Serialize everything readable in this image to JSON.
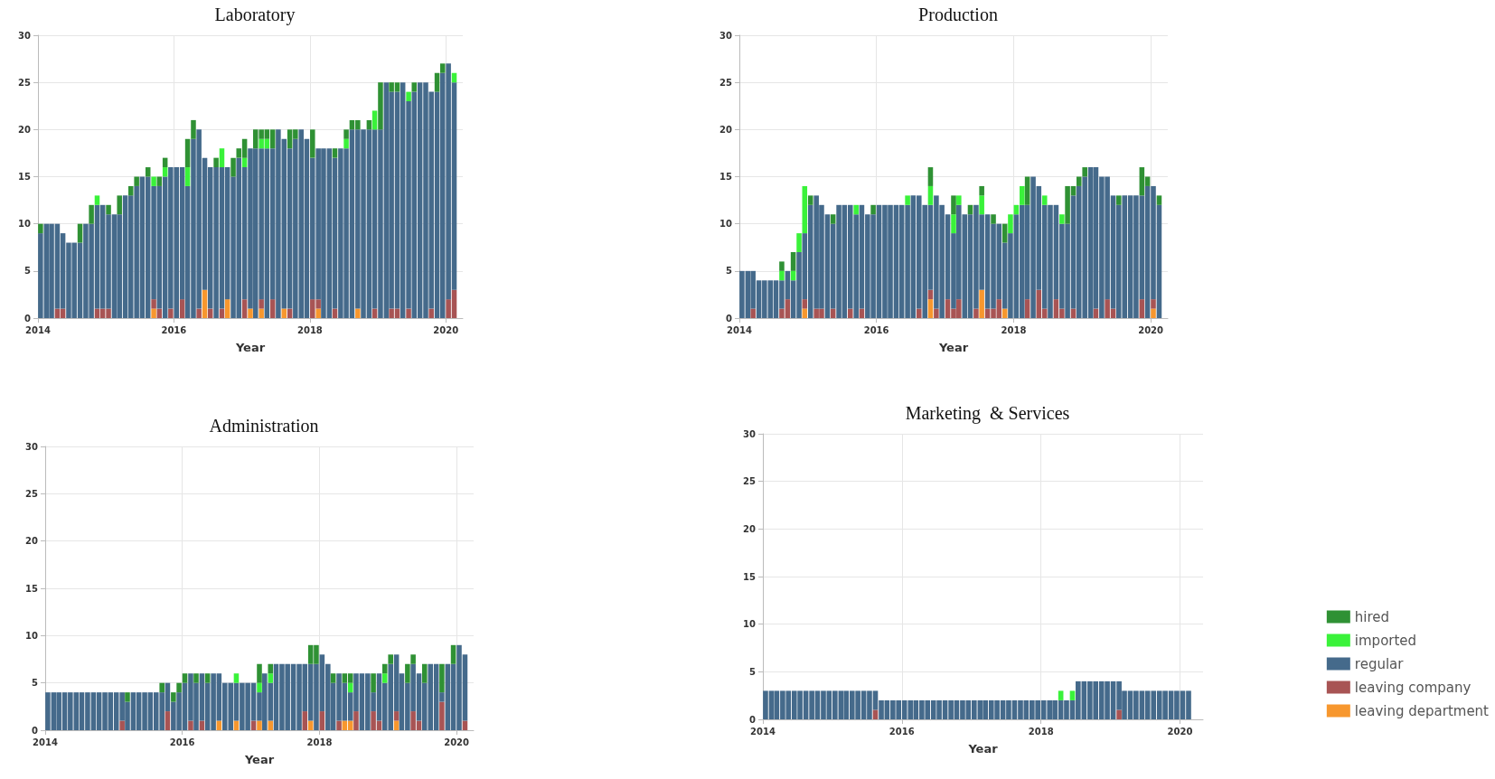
{
  "chart_data": [
    {
      "type": "bar",
      "title": "Laboratory",
      "xlabel": "Year",
      "stacked": true,
      "grid": true,
      "legend": false,
      "xlim": [
        "2014",
        "2020-04"
      ],
      "xticks": [
        "2014",
        "2016",
        "2018",
        "2020"
      ],
      "ylim": [
        0,
        30
      ],
      "yticks": [
        0,
        5,
        10,
        15,
        20,
        25,
        30
      ],
      "x": [
        "2014-01-15",
        "2014-02-15",
        "2014-03-15",
        "2014-04-15",
        "2014-05-15",
        "2014-06-15",
        "2014-07-15",
        "2014-08-15",
        "2014-09-15",
        "2014-10-15",
        "2014-11-15",
        "2014-12-15",
        "2015-01-15",
        "2015-02-15",
        "2015-03-15",
        "2015-04-15",
        "2015-05-15",
        "2015-06-15",
        "2015-07-15",
        "2015-08-15",
        "2015-09-15",
        "2015-10-15",
        "2015-11-15",
        "2015-12-15",
        "2016-01-15",
        "2016-02-15",
        "2016-03-15",
        "2016-04-15",
        "2016-05-15",
        "2016-06-15",
        "2016-07-15",
        "2016-08-15",
        "2016-09-15",
        "2016-10-15",
        "2016-11-15",
        "2016-12-15",
        "2017-01-15",
        "2017-02-15",
        "2017-03-15",
        "2017-04-15",
        "2017-05-15",
        "2017-06-15",
        "2017-07-15",
        "2017-08-15",
        "2017-09-15",
        "2017-10-15",
        "2017-11-15",
        "2017-12-15",
        "2018-01-15",
        "2018-02-15",
        "2018-03-15",
        "2018-04-15",
        "2018-05-15",
        "2018-06-15",
        "2018-07-15",
        "2018-08-15",
        "2018-09-15",
        "2018-10-15",
        "2018-11-15",
        "2018-12-15",
        "2019-01-15",
        "2019-02-15",
        "2019-03-15",
        "2019-04-15",
        "2019-05-15",
        "2019-06-15",
        "2019-07-15",
        "2019-08-15",
        "2019-09-15",
        "2019-10-15",
        "2019-11-15",
        "2019-12-15",
        "2020-01-15",
        "2020-02-15"
      ],
      "series": [
        {
          "color": "#f7972e",
          "values": [
            0,
            0,
            0,
            0,
            0,
            0,
            0,
            0,
            0,
            0,
            0,
            0,
            0,
            0,
            0,
            0,
            0,
            0,
            0,
            0,
            1,
            0,
            0,
            0,
            0,
            0,
            0,
            0,
            0,
            3,
            0,
            0,
            0,
            2,
            0,
            0,
            0,
            1,
            0,
            1,
            0,
            0,
            0,
            1,
            0,
            0,
            0,
            0,
            0,
            1,
            0,
            0,
            0,
            0,
            0,
            0,
            1,
            0,
            0,
            0,
            0,
            0,
            0,
            0,
            0,
            0,
            0,
            0,
            0,
            0,
            0,
            0,
            0,
            0
          ]
        },
        {
          "color": "#a85454",
          "values": [
            0,
            0,
            0,
            1,
            1,
            0,
            0,
            0,
            0,
            0,
            1,
            1,
            1,
            0,
            0,
            0,
            0,
            0,
            0,
            0,
            1,
            1,
            0,
            1,
            0,
            2,
            0,
            0,
            1,
            0,
            1,
            0,
            1,
            0,
            0,
            0,
            2,
            0,
            0,
            1,
            0,
            2,
            0,
            0,
            1,
            0,
            0,
            0,
            2,
            1,
            0,
            0,
            1,
            0,
            0,
            0,
            0,
            0,
            0,
            1,
            0,
            0,
            1,
            1,
            0,
            1,
            0,
            0,
            0,
            1,
            0,
            0,
            2,
            3
          ]
        },
        {
          "color": "#456a8b",
          "values": [
            9,
            10,
            10,
            9,
            8,
            8,
            8,
            8,
            10,
            10,
            11,
            11,
            10,
            11,
            11,
            13,
            13,
            14,
            15,
            15,
            12,
            13,
            15,
            15,
            16,
            14,
            14,
            19,
            19,
            14,
            15,
            16,
            15,
            14,
            15,
            17,
            14,
            17,
            18,
            16,
            18,
            16,
            20,
            18,
            17,
            19,
            20,
            19,
            15,
            16,
            18,
            18,
            16,
            18,
            18,
            20,
            19,
            20,
            20,
            19,
            20,
            25,
            23,
            23,
            25,
            22,
            24,
            25,
            25,
            23,
            24,
            26,
            25,
            22
          ]
        },
        {
          "color": "#3af23a",
          "values": [
            0,
            0,
            0,
            0,
            0,
            0,
            0,
            0,
            0,
            0,
            1,
            0,
            0,
            0,
            0,
            0,
            0,
            0,
            0,
            0,
            1,
            0,
            1,
            0,
            0,
            0,
            2,
            0,
            0,
            0,
            0,
            0,
            2,
            0,
            0,
            0,
            1,
            0,
            0,
            1,
            1,
            0,
            0,
            0,
            0,
            0,
            0,
            0,
            0,
            0,
            0,
            0,
            0,
            0,
            1,
            0,
            0,
            0,
            0,
            2,
            0,
            0,
            0,
            0,
            0,
            1,
            0,
            0,
            0,
            0,
            0,
            0,
            0,
            1
          ]
        },
        {
          "color": "#2f9134",
          "values": [
            1,
            0,
            0,
            0,
            0,
            0,
            0,
            2,
            0,
            2,
            0,
            0,
            1,
            0,
            2,
            0,
            1,
            1,
            0,
            1,
            0,
            1,
            1,
            0,
            0,
            0,
            3,
            2,
            0,
            0,
            0,
            1,
            0,
            0,
            2,
            1,
            2,
            0,
            2,
            1,
            1,
            2,
            0,
            0,
            2,
            1,
            0,
            0,
            3,
            0,
            0,
            0,
            1,
            0,
            1,
            1,
            1,
            0,
            1,
            0,
            5,
            0,
            1,
            1,
            0,
            0,
            1,
            0,
            0,
            0,
            2,
            1,
            0,
            0
          ]
        }
      ]
    },
    {
      "type": "bar",
      "title": "Production",
      "xlabel": "Year",
      "stacked": true,
      "grid": true,
      "legend": false,
      "xlim": [
        "2014",
        "2020-04"
      ],
      "xticks": [
        "2014",
        "2016",
        "2018",
        "2020"
      ],
      "ylim": [
        0,
        30
      ],
      "yticks": [
        0,
        5,
        10,
        15,
        20,
        25,
        30
      ],
      "x": [
        "2014-01-15",
        "2014-02-15",
        "2014-03-15",
        "2014-04-15",
        "2014-05-15",
        "2014-06-15",
        "2014-07-15",
        "2014-08-15",
        "2014-09-15",
        "2014-10-15",
        "2014-11-15",
        "2014-12-15",
        "2015-01-15",
        "2015-02-15",
        "2015-03-15",
        "2015-04-15",
        "2015-05-15",
        "2015-06-15",
        "2015-07-15",
        "2015-08-15",
        "2015-09-15",
        "2015-10-15",
        "2015-11-15",
        "2015-12-15",
        "2016-01-15",
        "2016-02-15",
        "2016-03-15",
        "2016-04-15",
        "2016-05-15",
        "2016-06-15",
        "2016-07-15",
        "2016-08-15",
        "2016-09-15",
        "2016-10-15",
        "2016-11-15",
        "2016-12-15",
        "2017-01-15",
        "2017-02-15",
        "2017-03-15",
        "2017-04-15",
        "2017-05-15",
        "2017-06-15",
        "2017-07-15",
        "2017-08-15",
        "2017-09-15",
        "2017-10-15",
        "2017-11-15",
        "2017-12-15",
        "2018-01-15",
        "2018-02-15",
        "2018-03-15",
        "2018-04-15",
        "2018-05-15",
        "2018-06-15",
        "2018-07-15",
        "2018-08-15",
        "2018-09-15",
        "2018-10-15",
        "2018-11-15",
        "2018-12-15",
        "2019-01-15",
        "2019-02-15",
        "2019-03-15",
        "2019-04-15",
        "2019-05-15",
        "2019-06-15",
        "2019-07-15",
        "2019-08-15",
        "2019-09-15",
        "2019-10-15",
        "2019-11-15",
        "2019-12-15",
        "2020-01-15",
        "2020-02-15"
      ],
      "series": [
        {
          "color": "#f7972e",
          "values": [
            0,
            0,
            0,
            0,
            0,
            0,
            0,
            0,
            0,
            0,
            0,
            1,
            0,
            0,
            0,
            0,
            0,
            0,
            0,
            0,
            0,
            0,
            0,
            0,
            0,
            0,
            0,
            0,
            0,
            0,
            0,
            0,
            0,
            2,
            0,
            0,
            0,
            0,
            0,
            0,
            0,
            0,
            3,
            0,
            0,
            0,
            1,
            0,
            0,
            0,
            0,
            0,
            0,
            0,
            0,
            0,
            0,
            0,
            0,
            0,
            0,
            0,
            0,
            0,
            0,
            0,
            0,
            0,
            0,
            0,
            0,
            0,
            1,
            0
          ]
        },
        {
          "color": "#a85454",
          "values": [
            0,
            0,
            1,
            0,
            0,
            0,
            0,
            1,
            2,
            0,
            0,
            1,
            0,
            1,
            1,
            0,
            1,
            0,
            0,
            1,
            0,
            1,
            0,
            0,
            0,
            0,
            0,
            0,
            0,
            0,
            0,
            1,
            0,
            1,
            1,
            0,
            2,
            1,
            2,
            0,
            0,
            1,
            0,
            1,
            1,
            2,
            0,
            0,
            0,
            0,
            2,
            0,
            3,
            1,
            0,
            2,
            1,
            0,
            1,
            0,
            0,
            0,
            1,
            0,
            2,
            1,
            0,
            0,
            0,
            0,
            2,
            0,
            1,
            0
          ]
        },
        {
          "color": "#456a8b",
          "values": [
            5,
            5,
            4,
            4,
            4,
            4,
            4,
            3,
            3,
            4,
            7,
            7,
            12,
            12,
            11,
            11,
            9,
            12,
            12,
            11,
            11,
            11,
            11,
            11,
            12,
            12,
            12,
            12,
            12,
            12,
            13,
            12,
            12,
            9,
            12,
            12,
            9,
            8,
            10,
            11,
            11,
            11,
            8,
            10,
            9,
            8,
            7,
            9,
            11,
            12,
            10,
            15,
            11,
            11,
            12,
            10,
            9,
            10,
            12,
            14,
            15,
            16,
            15,
            15,
            13,
            12,
            12,
            13,
            13,
            13,
            11,
            14,
            12,
            12
          ]
        },
        {
          "color": "#3af23a",
          "values": [
            0,
            0,
            0,
            0,
            0,
            0,
            0,
            1,
            0,
            1,
            2,
            5,
            0,
            0,
            0,
            0,
            0,
            0,
            0,
            0,
            1,
            0,
            0,
            0,
            0,
            0,
            0,
            0,
            0,
            1,
            0,
            0,
            0,
            2,
            0,
            0,
            0,
            2,
            1,
            0,
            0,
            0,
            2,
            0,
            0,
            0,
            0,
            2,
            1,
            2,
            0,
            0,
            0,
            1,
            0,
            0,
            1,
            0,
            0,
            0,
            0,
            0,
            0,
            0,
            0,
            0,
            0,
            0,
            0,
            0,
            0,
            0,
            0,
            0
          ]
        },
        {
          "color": "#2f9134",
          "values": [
            0,
            0,
            0,
            0,
            0,
            0,
            0,
            1,
            0,
            2,
            0,
            0,
            1,
            0,
            0,
            0,
            1,
            0,
            0,
            0,
            0,
            0,
            0,
            1,
            0,
            0,
            0,
            0,
            0,
            0,
            0,
            0,
            0,
            2,
            0,
            0,
            0,
            2,
            0,
            0,
            1,
            0,
            1,
            0,
            1,
            0,
            2,
            0,
            0,
            0,
            3,
            0,
            0,
            0,
            0,
            0,
            0,
            4,
            1,
            1,
            1,
            0,
            0,
            0,
            0,
            0,
            1,
            0,
            0,
            0,
            3,
            1,
            0,
            1
          ]
        }
      ]
    },
    {
      "type": "bar",
      "title": "Administration",
      "xlabel": "Year",
      "stacked": true,
      "grid": true,
      "legend": false,
      "xlim": [
        "2014",
        "2020-04"
      ],
      "xticks": [
        "2014",
        "2016",
        "2018",
        "2020"
      ],
      "ylim": [
        0,
        30
      ],
      "yticks": [
        0,
        5,
        10,
        15,
        20,
        25,
        30
      ],
      "x": [
        "2014-01-15",
        "2014-02-15",
        "2014-03-15",
        "2014-04-15",
        "2014-05-15",
        "2014-06-15",
        "2014-07-15",
        "2014-08-15",
        "2014-09-15",
        "2014-10-15",
        "2014-11-15",
        "2014-12-15",
        "2015-01-15",
        "2015-02-15",
        "2015-03-15",
        "2015-04-15",
        "2015-05-15",
        "2015-06-15",
        "2015-07-15",
        "2015-08-15",
        "2015-09-15",
        "2015-10-15",
        "2015-11-15",
        "2015-12-15",
        "2016-01-15",
        "2016-02-15",
        "2016-03-15",
        "2016-04-15",
        "2016-05-15",
        "2016-06-15",
        "2016-07-15",
        "2016-08-15",
        "2016-09-15",
        "2016-10-15",
        "2016-11-15",
        "2016-12-15",
        "2017-01-15",
        "2017-02-15",
        "2017-03-15",
        "2017-04-15",
        "2017-05-15",
        "2017-06-15",
        "2017-07-15",
        "2017-08-15",
        "2017-09-15",
        "2017-10-15",
        "2017-11-15",
        "2017-12-15",
        "2018-01-15",
        "2018-02-15",
        "2018-03-15",
        "2018-04-15",
        "2018-05-15",
        "2018-06-15",
        "2018-07-15",
        "2018-08-15",
        "2018-09-15",
        "2018-10-15",
        "2018-11-15",
        "2018-12-15",
        "2019-01-15",
        "2019-02-15",
        "2019-03-15",
        "2019-04-15",
        "2019-05-15",
        "2019-06-15",
        "2019-07-15",
        "2019-08-15",
        "2019-09-15",
        "2019-10-15",
        "2019-11-15",
        "2019-12-15",
        "2020-01-15",
        "2020-02-15"
      ],
      "series": [
        {
          "color": "#f7972e",
          "values": [
            0,
            0,
            0,
            0,
            0,
            0,
            0,
            0,
            0,
            0,
            0,
            0,
            0,
            0,
            0,
            0,
            0,
            0,
            0,
            0,
            0,
            0,
            0,
            0,
            0,
            0,
            0,
            0,
            0,
            0,
            1,
            0,
            0,
            1,
            0,
            0,
            0,
            1,
            0,
            1,
            0,
            0,
            0,
            0,
            0,
            0,
            1,
            0,
            0,
            0,
            0,
            0,
            1,
            1,
            0,
            0,
            0,
            0,
            0,
            0,
            0,
            1,
            0,
            0,
            0,
            0,
            0,
            0,
            0,
            0,
            0,
            0,
            0,
            0
          ]
        },
        {
          "color": "#a85454",
          "values": [
            0,
            0,
            0,
            0,
            0,
            0,
            0,
            0,
            0,
            0,
            0,
            0,
            0,
            1,
            0,
            0,
            0,
            0,
            0,
            0,
            0,
            2,
            0,
            0,
            0,
            1,
            0,
            1,
            0,
            0,
            0,
            0,
            0,
            0,
            0,
            0,
            1,
            0,
            0,
            0,
            0,
            0,
            0,
            0,
            0,
            2,
            0,
            0,
            2,
            0,
            0,
            1,
            0,
            0,
            2,
            0,
            0,
            2,
            1,
            0,
            0,
            1,
            0,
            0,
            2,
            1,
            0,
            0,
            0,
            3,
            0,
            0,
            0,
            1
          ]
        },
        {
          "color": "#456a8b",
          "values": [
            4,
            4,
            4,
            4,
            4,
            4,
            4,
            4,
            4,
            4,
            4,
            4,
            4,
            3,
            3,
            4,
            4,
            4,
            4,
            4,
            4,
            3,
            3,
            4,
            5,
            5,
            5,
            5,
            5,
            6,
            5,
            5,
            5,
            4,
            5,
            5,
            4,
            3,
            6,
            4,
            7,
            7,
            7,
            7,
            7,
            5,
            6,
            7,
            6,
            7,
            5,
            5,
            4,
            3,
            4,
            6,
            6,
            2,
            5,
            5,
            7,
            6,
            6,
            5,
            5,
            5,
            5,
            7,
            7,
            1,
            7,
            7,
            9,
            7
          ]
        },
        {
          "color": "#3af23a",
          "values": [
            0,
            0,
            0,
            0,
            0,
            0,
            0,
            0,
            0,
            0,
            0,
            0,
            0,
            0,
            0,
            0,
            0,
            0,
            0,
            0,
            0,
            0,
            0,
            0,
            0,
            0,
            0,
            0,
            0,
            0,
            0,
            0,
            0,
            1,
            0,
            0,
            0,
            1,
            0,
            1,
            0,
            0,
            0,
            0,
            0,
            0,
            0,
            0,
            0,
            0,
            0,
            0,
            0,
            1,
            0,
            0,
            0,
            0,
            0,
            1,
            0,
            0,
            0,
            0,
            0,
            0,
            0,
            0,
            0,
            0,
            0,
            0,
            0,
            0
          ]
        },
        {
          "color": "#2f9134",
          "values": [
            0,
            0,
            0,
            0,
            0,
            0,
            0,
            0,
            0,
            0,
            0,
            0,
            0,
            0,
            1,
            0,
            0,
            0,
            0,
            0,
            1,
            0,
            1,
            1,
            1,
            0,
            1,
            0,
            1,
            0,
            0,
            0,
            0,
            0,
            0,
            0,
            0,
            2,
            0,
            1,
            0,
            0,
            0,
            0,
            0,
            0,
            2,
            2,
            0,
            0,
            1,
            0,
            1,
            1,
            0,
            0,
            0,
            2,
            0,
            1,
            1,
            0,
            0,
            2,
            1,
            0,
            2,
            0,
            0,
            3,
            0,
            2,
            0,
            0
          ]
        }
      ]
    },
    {
      "type": "bar",
      "title": "Marketing  & Services",
      "xlabel": "Year",
      "stacked": true,
      "grid": true,
      "legend": "right",
      "xlim": [
        "2014",
        "2020-05"
      ],
      "xticks": [
        "2014",
        "2016",
        "2018",
        "2020"
      ],
      "ylim": [
        0,
        30
      ],
      "yticks": [
        0,
        5,
        10,
        15,
        20,
        25,
        30
      ],
      "x": [
        "2014-01-15",
        "2014-02-15",
        "2014-03-15",
        "2014-04-15",
        "2014-05-15",
        "2014-06-15",
        "2014-07-15",
        "2014-08-15",
        "2014-09-15",
        "2014-10-15",
        "2014-11-15",
        "2014-12-15",
        "2015-01-15",
        "2015-02-15",
        "2015-03-15",
        "2015-04-15",
        "2015-05-15",
        "2015-06-15",
        "2015-07-15",
        "2015-08-15",
        "2015-09-15",
        "2015-10-15",
        "2015-11-15",
        "2015-12-15",
        "2016-01-15",
        "2016-02-15",
        "2016-03-15",
        "2016-04-15",
        "2016-05-15",
        "2016-06-15",
        "2016-07-15",
        "2016-08-15",
        "2016-09-15",
        "2016-10-15",
        "2016-11-15",
        "2016-12-15",
        "2017-01-15",
        "2017-02-15",
        "2017-03-15",
        "2017-04-15",
        "2017-05-15",
        "2017-06-15",
        "2017-07-15",
        "2017-08-15",
        "2017-09-15",
        "2017-10-15",
        "2017-11-15",
        "2017-12-15",
        "2018-01-15",
        "2018-02-15",
        "2018-03-15",
        "2018-04-15",
        "2018-05-15",
        "2018-06-15",
        "2018-07-15",
        "2018-08-15",
        "2018-09-15",
        "2018-10-15",
        "2018-11-15",
        "2018-12-15",
        "2019-01-15",
        "2019-02-15",
        "2019-03-15",
        "2019-04-15",
        "2019-05-15",
        "2019-06-15",
        "2019-07-15",
        "2019-08-15",
        "2019-09-15",
        "2019-10-15",
        "2019-11-15",
        "2019-12-15",
        "2020-01-15",
        "2020-02-15"
      ],
      "series": [
        {
          "name": "leaving department",
          "color": "#f7972e",
          "values": [
            0,
            0,
            0,
            0,
            0,
            0,
            0,
            0,
            0,
            0,
            0,
            0,
            0,
            0,
            0,
            0,
            0,
            0,
            0,
            0,
            0,
            0,
            0,
            0,
            0,
            0,
            0,
            0,
            0,
            0,
            0,
            0,
            0,
            0,
            0,
            0,
            0,
            0,
            0,
            0,
            0,
            0,
            0,
            0,
            0,
            0,
            0,
            0,
            0,
            0,
            0,
            0,
            0,
            0,
            0,
            0,
            0,
            0,
            0,
            0,
            0,
            0,
            0,
            0,
            0,
            0,
            0,
            0,
            0,
            0,
            0,
            0,
            0,
            0
          ]
        },
        {
          "name": "leaving company",
          "color": "#a85454",
          "values": [
            0,
            0,
            0,
            0,
            0,
            0,
            0,
            0,
            0,
            0,
            0,
            0,
            0,
            0,
            0,
            0,
            0,
            0,
            0,
            1,
            0,
            0,
            0,
            0,
            0,
            0,
            0,
            0,
            0,
            0,
            0,
            0,
            0,
            0,
            0,
            0,
            0,
            0,
            0,
            0,
            0,
            0,
            0,
            0,
            0,
            0,
            0,
            0,
            0,
            0,
            0,
            0,
            0,
            0,
            0,
            0,
            0,
            0,
            0,
            0,
            0,
            1,
            0,
            0,
            0,
            0,
            0,
            0,
            0,
            0,
            0,
            0,
            0,
            0
          ]
        },
        {
          "name": "regular",
          "color": "#456a8b",
          "values": [
            3,
            3,
            3,
            3,
            3,
            3,
            3,
            3,
            3,
            3,
            3,
            3,
            3,
            3,
            3,
            3,
            3,
            3,
            3,
            2,
            2,
            2,
            2,
            2,
            2,
            2,
            2,
            2,
            2,
            2,
            2,
            2,
            2,
            2,
            2,
            2,
            2,
            2,
            2,
            2,
            2,
            2,
            2,
            2,
            2,
            2,
            2,
            2,
            2,
            2,
            2,
            2,
            2,
            2,
            4,
            4,
            4,
            4,
            4,
            4,
            4,
            3,
            3,
            3,
            3,
            3,
            3,
            3,
            3,
            3,
            3,
            3,
            3,
            3
          ]
        },
        {
          "name": "imported",
          "color": "#3af23a",
          "values": [
            0,
            0,
            0,
            0,
            0,
            0,
            0,
            0,
            0,
            0,
            0,
            0,
            0,
            0,
            0,
            0,
            0,
            0,
            0,
            0,
            0,
            0,
            0,
            0,
            0,
            0,
            0,
            0,
            0,
            0,
            0,
            0,
            0,
            0,
            0,
            0,
            0,
            0,
            0,
            0,
            0,
            0,
            0,
            0,
            0,
            0,
            0,
            0,
            0,
            0,
            0,
            1,
            0,
            1,
            0,
            0,
            0,
            0,
            0,
            0,
            0,
            0,
            0,
            0,
            0,
            0,
            0,
            0,
            0,
            0,
            0,
            0,
            0,
            0
          ]
        },
        {
          "name": "hired",
          "color": "#2f9134",
          "values": [
            0,
            0,
            0,
            0,
            0,
            0,
            0,
            0,
            0,
            0,
            0,
            0,
            0,
            0,
            0,
            0,
            0,
            0,
            0,
            0,
            0,
            0,
            0,
            0,
            0,
            0,
            0,
            0,
            0,
            0,
            0,
            0,
            0,
            0,
            0,
            0,
            0,
            0,
            0,
            0,
            0,
            0,
            0,
            0,
            0,
            0,
            0,
            0,
            0,
            0,
            0,
            0,
            0,
            0,
            0,
            0,
            0,
            0,
            0,
            0,
            0,
            0,
            0,
            0,
            0,
            0,
            0,
            0,
            0,
            0,
            0,
            0,
            0,
            0
          ]
        }
      ]
    }
  ]
}
